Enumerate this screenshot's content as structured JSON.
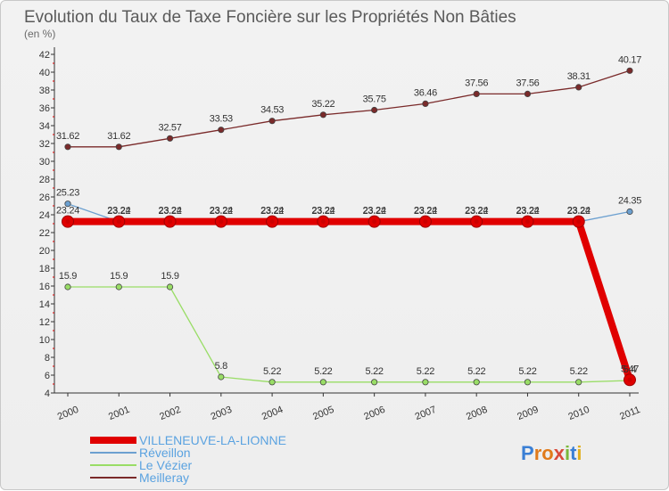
{
  "chart_data": {
    "type": "line",
    "title": "Evolution du Taux de Taxe Foncière sur les Propriétés Non Bâties",
    "subtitle": "(en %)",
    "xlabel": "",
    "ylabel": "(en %)",
    "x": [
      "2000",
      "2001",
      "2002",
      "2003",
      "2004",
      "2005",
      "2006",
      "2007",
      "2008",
      "2009",
      "2010",
      "2011"
    ],
    "ylim": [
      4,
      42
    ],
    "yticks": [
      "4",
      "6",
      "8",
      "10",
      "12",
      "14",
      "16",
      "18",
      "20",
      "22",
      "24",
      "26",
      "28",
      "30",
      "32",
      "34",
      "36",
      "38",
      "40",
      "42"
    ],
    "grid": false,
    "legend_position": "bottom-left",
    "series": [
      {
        "name": "VILLENEUVE-LA-LIONNE",
        "color": "#e00000",
        "values": [
          23.24,
          23.24,
          23.24,
          23.24,
          23.24,
          23.24,
          23.24,
          23.24,
          23.24,
          23.24,
          23.24,
          5.47
        ],
        "labels": [
          "23.24",
          "23.24",
          "23.24",
          "23.24",
          "23.24",
          "23.24",
          "23.24",
          "23.24",
          "23.24",
          "23.24",
          "23.24",
          "5.47"
        ]
      },
      {
        "name": "Réveillon",
        "color": "#6ca0d0",
        "values": [
          25.23,
          23.22,
          23.22,
          23.22,
          23.22,
          23.22,
          23.22,
          23.22,
          23.22,
          23.22,
          23.22,
          24.35
        ],
        "labels": [
          "25.23",
          "23.22",
          "23.22",
          "23.22",
          "23.22",
          "23.22",
          "23.22",
          "23.22",
          "23.22",
          "23.22",
          "23.22",
          "24.35"
        ]
      },
      {
        "name": "Le Vézier",
        "color": "#99dd66",
        "values": [
          15.9,
          15.9,
          15.9,
          5.8,
          5.22,
          5.22,
          5.22,
          5.22,
          5.22,
          5.22,
          5.22,
          5.4
        ],
        "labels": [
          "15.9",
          "15.9",
          "15.9",
          "5.8",
          "5.22",
          "5.22",
          "5.22",
          "5.22",
          "5.22",
          "5.22",
          "5.22",
          "5.4"
        ]
      },
      {
        "name": "Meilleray",
        "color": "#7a2a2a",
        "values": [
          31.62,
          31.62,
          32.57,
          33.53,
          34.53,
          35.22,
          35.75,
          36.46,
          37.56,
          37.56,
          38.31,
          40.17
        ],
        "labels": [
          "31.62",
          "31.62",
          "32.57",
          "33.53",
          "34.53",
          "35.22",
          "35.75",
          "36.46",
          "37.56",
          "37.56",
          "38.31",
          "40.17"
        ]
      }
    ]
  },
  "logo": {
    "text": "Proxiti"
  }
}
